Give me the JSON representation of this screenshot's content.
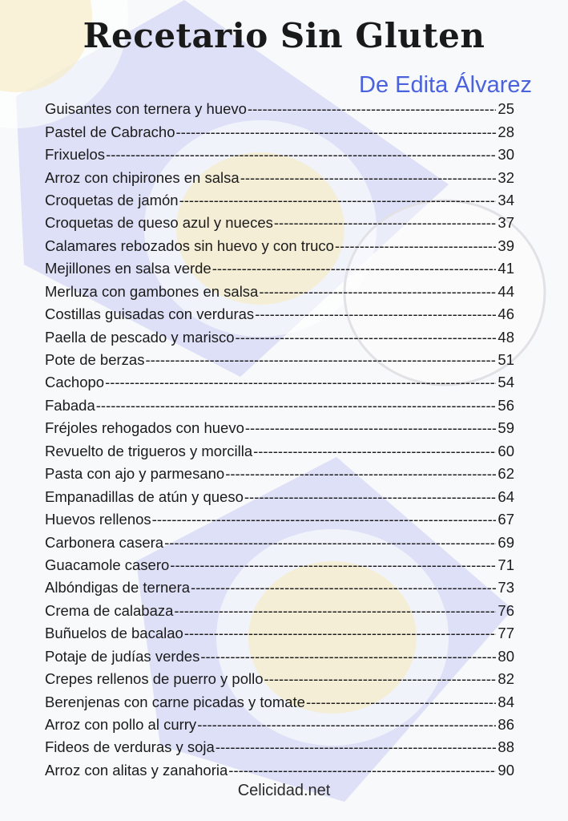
{
  "title": "Recetario Sin Gluten",
  "author": "De Edita Álvarez",
  "entries": [
    {
      "name": "Guisantes con ternera y huevo",
      "page": "25"
    },
    {
      "name": "Pastel de Cabracho",
      "page": "28"
    },
    {
      "name": "Frixuelos",
      "page": "30"
    },
    {
      "name": "Arroz con chipirones en salsa",
      "page": "32"
    },
    {
      "name": "Croquetas de jamón",
      "page": "34"
    },
    {
      "name": "Croquetas de queso azul y nueces",
      "page": "37"
    },
    {
      "name": "Calamares rebozados sin huevo y con truco",
      "page": "39"
    },
    {
      "name": "Mejillones en salsa verde",
      "page": "41"
    },
    {
      "name": "Merluza con gambones en salsa",
      "page": "44"
    },
    {
      "name": "Costillas guisadas con verduras",
      "page": "46"
    },
    {
      "name": "Paella de pescado y marisco",
      "page": "48"
    },
    {
      "name": "Pote de berzas",
      "page": "51"
    },
    {
      "name": "Cachopo",
      "page": "54"
    },
    {
      "name": "Fabada",
      "page": "56"
    },
    {
      "name": "Fréjoles rehogados con huevo",
      "page": "59"
    },
    {
      "name": "Revuelto de trigueros y morcilla",
      "page": "60"
    },
    {
      "name": "Pasta con ajo y parmesano",
      "page": "62"
    },
    {
      "name": "Empanadillas de atún y queso",
      "page": "64"
    },
    {
      "name": "Huevos rellenos",
      "page": "67"
    },
    {
      "name": "Carbonera casera",
      "page": "69"
    },
    {
      "name": "Guacamole casero",
      "page": "71"
    },
    {
      "name": "Albóndigas de ternera",
      "page": "73"
    },
    {
      "name": "Crema de calabaza",
      "page": "76"
    },
    {
      "name": "Buñuelos de bacalao",
      "page": "77"
    },
    {
      "name": "Potaje de judías verdes",
      "page": "80"
    },
    {
      "name": "Crepes rellenos de puerro y pollo",
      "page": "82"
    },
    {
      "name": "Berenjenas con carne picadas y tomate",
      "page": "84"
    },
    {
      "name": "Arroz con pollo al curry",
      "page": "86"
    },
    {
      "name": "Fideos de verduras y soja",
      "page": "88"
    },
    {
      "name": "Arroz con alitas y zanahoria",
      "page": "90"
    }
  ],
  "footer": "Celicidad.net",
  "colors": {
    "author": "#4a62dd",
    "napkin": "#8f9ae6"
  }
}
